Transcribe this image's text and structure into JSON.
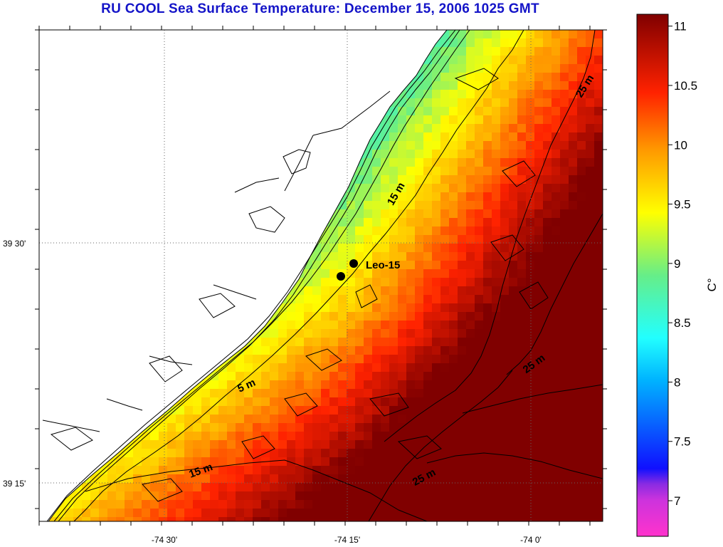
{
  "title": "RU COOL  Sea Surface Temperature:  December 15, 2006 1025 GMT",
  "lat_labels": [
    "39 30'",
    "39 15'"
  ],
  "lon_labels": [
    "-74 30'",
    "-74 15'",
    "-74 0'"
  ],
  "colorbar": {
    "ticks": [
      "7",
      "7.5",
      "8",
      "8.5",
      "9",
      "9.5",
      "10",
      "10.5",
      "11"
    ],
    "tick_values": [
      7,
      7.5,
      8,
      8.5,
      9,
      9.5,
      10,
      10.5,
      11
    ],
    "range": [
      6.7,
      11.1
    ],
    "unit": "C°",
    "colors": [
      "#ff33cc",
      "#8a2be2",
      "#1010ff",
      "#00b4ff",
      "#22ffff",
      "#66ee88",
      "#ffff00",
      "#ff9900",
      "#ff2200",
      "#800000"
    ]
  },
  "contour_labels": [
    "25 m",
    "15 m",
    "5 m",
    "15 m",
    "25 m",
    "25 m"
  ],
  "stations": {
    "label": "Leo-15",
    "count": 2
  },
  "land_color": "#ffffff",
  "contour_color": "#000000"
}
